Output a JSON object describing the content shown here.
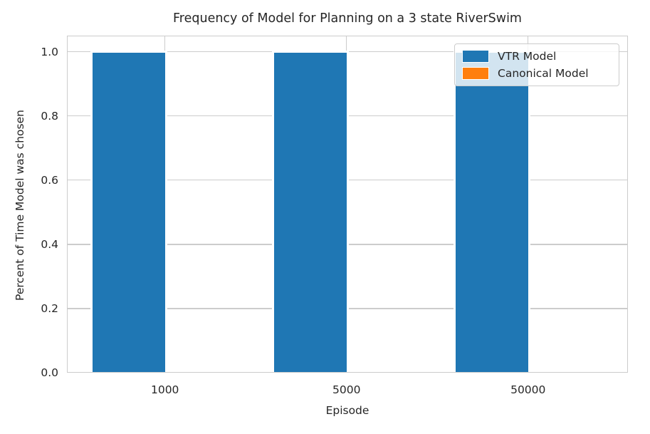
{
  "chart_data": {
    "type": "bar",
    "title": "Frequency of Model for Planning on a 3 state RiverSwim",
    "xlabel": "Episode",
    "ylabel": "Percent of Time Model was chosen",
    "categories": [
      "1000",
      "5000",
      "50000"
    ],
    "series": [
      {
        "name": "VTR Model",
        "color": "#1f77b4",
        "values": [
          1.0,
          1.0,
          1.0
        ]
      },
      {
        "name": "Canonical Model",
        "color": "#ff7f0e",
        "values": [
          0.0,
          0.0,
          0.0
        ]
      }
    ],
    "ylim": [
      0,
      1.05
    ],
    "yticks": [
      0.0,
      0.2,
      0.4,
      0.6,
      0.8,
      1.0
    ],
    "ytick_labels": [
      "0.0",
      "0.2",
      "0.4",
      "0.6",
      "0.8",
      "1.0"
    ],
    "grid": true,
    "legend_position": "upper right",
    "colors": {
      "grid": "#cccccc",
      "spine": "#cccccc",
      "text": "#262626",
      "background": "#ffffff"
    }
  }
}
